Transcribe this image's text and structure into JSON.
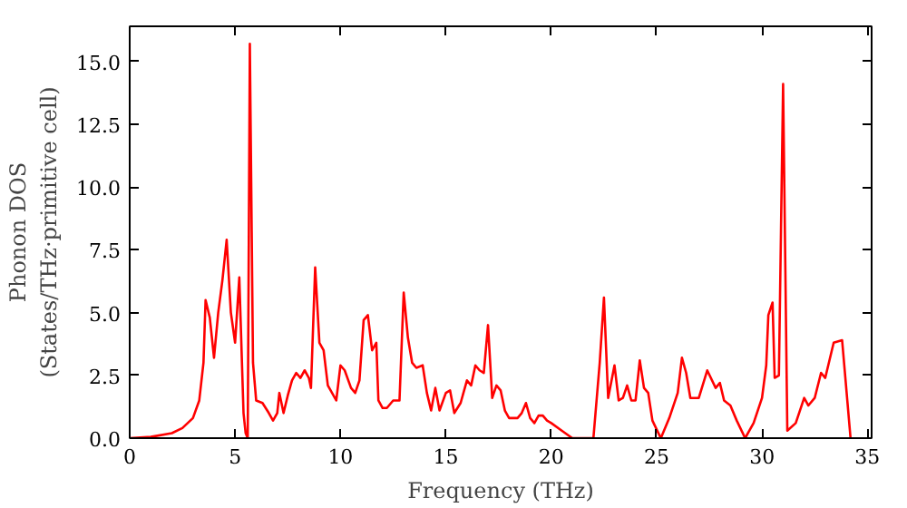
{
  "chart_data": {
    "type": "line",
    "xlabel": "Frequency (THz)",
    "ylabel": "Phonon DOS\n(States/THz·primitive cell)",
    "xlim": [
      0,
      35.2
    ],
    "ylim": [
      0,
      16.4
    ],
    "xticks": [
      0,
      5,
      10,
      15,
      20,
      25,
      30,
      35
    ],
    "yticks": [
      {
        "value": 0,
        "label": "0.0"
      },
      {
        "value": 2.5,
        "label": "2.5"
      },
      {
        "value": 5,
        "label": "5.0"
      },
      {
        "value": 7.5,
        "label": "7.5"
      },
      {
        "value": 10,
        "label": "10.0"
      },
      {
        "value": 12.5,
        "label": "12.5"
      },
      {
        "value": 15,
        "label": "15.0"
      }
    ],
    "grid": false,
    "marker": "none",
    "line_style": "solid",
    "series": [
      {
        "color": "#ff0000",
        "x": [
          0,
          1,
          2,
          2.5,
          3,
          3.3,
          3.5,
          3.6,
          3.8,
          4.0,
          4.2,
          4.4,
          4.6,
          4.8,
          5.0,
          5.2,
          5.4,
          5.5,
          5.6,
          5.7,
          5.85,
          6.0,
          6.3,
          6.6,
          6.8,
          7.0,
          7.1,
          7.3,
          7.5,
          7.7,
          7.9,
          8.1,
          8.3,
          8.5,
          8.6,
          8.8,
          9.0,
          9.2,
          9.4,
          9.6,
          9.8,
          10.0,
          10.2,
          10.5,
          10.7,
          10.9,
          11.1,
          11.3,
          11.5,
          11.7,
          11.8,
          12.0,
          12.2,
          12.5,
          12.8,
          13.0,
          13.2,
          13.4,
          13.6,
          13.9,
          14.1,
          14.3,
          14.5,
          14.7,
          15.0,
          15.2,
          15.4,
          15.7,
          16.0,
          16.2,
          16.4,
          16.6,
          16.8,
          17.0,
          17.2,
          17.4,
          17.6,
          17.8,
          18.0,
          18.4,
          18.6,
          18.8,
          19.0,
          19.2,
          19.4,
          19.6,
          19.8,
          20.0,
          20.5,
          21.0,
          21.5,
          22.0,
          22.3,
          22.5,
          22.7,
          23.0,
          23.2,
          23.4,
          23.6,
          23.8,
          24.0,
          24.2,
          24.4,
          24.6,
          24.8,
          25.2,
          25.6,
          26.0,
          26.2,
          26.4,
          26.6,
          27.0,
          27.4,
          27.8,
          28.0,
          28.2,
          28.5,
          28.8,
          29.2,
          29.6,
          30.0,
          30.2,
          30.3,
          30.5,
          30.6,
          30.8,
          31.0,
          31.2,
          31.6,
          32.0,
          32.2,
          32.5,
          32.8,
          33.0,
          33.4,
          33.8,
          34.2
        ],
        "values": [
          0,
          0.05,
          0.2,
          0.4,
          0.8,
          1.5,
          3,
          5.5,
          4.8,
          3.2,
          5.0,
          6.3,
          7.9,
          5.0,
          3.8,
          6.4,
          1.0,
          0.2,
          0.0,
          15.7,
          3.0,
          1.5,
          1.4,
          1.0,
          0.7,
          1.0,
          1.8,
          1.0,
          1.7,
          2.3,
          2.6,
          2.4,
          2.7,
          2.4,
          2.0,
          6.8,
          3.8,
          3.5,
          2.1,
          1.8,
          1.5,
          2.9,
          2.7,
          2.0,
          1.8,
          2.3,
          4.7,
          4.9,
          3.5,
          3.8,
          1.5,
          1.2,
          1.2,
          1.5,
          1.5,
          5.8,
          4.0,
          3.0,
          2.8,
          2.9,
          1.8,
          1.1,
          2.0,
          1.1,
          1.8,
          1.9,
          1.0,
          1.4,
          2.3,
          2.1,
          2.9,
          2.7,
          2.6,
          4.5,
          1.6,
          2.1,
          1.9,
          1.1,
          0.8,
          0.8,
          1.0,
          1.4,
          0.8,
          0.6,
          0.9,
          0.9,
          0.7,
          0.6,
          0.3,
          0.0,
          0.0,
          0.0,
          3.0,
          5.6,
          1.6,
          2.9,
          1.5,
          1.6,
          2.1,
          1.5,
          1.5,
          3.1,
          2.0,
          1.8,
          0.7,
          0.0,
          0.8,
          1.8,
          3.2,
          2.6,
          1.6,
          1.6,
          2.7,
          2.0,
          2.2,
          1.5,
          1.3,
          0.7,
          0.0,
          0.6,
          1.6,
          2.9,
          4.9,
          5.4,
          2.4,
          2.5,
          14.1,
          0.3,
          0.6,
          1.6,
          1.3,
          1.6,
          2.6,
          2.4,
          3.8,
          3.9,
          0.0
        ]
      }
    ]
  }
}
